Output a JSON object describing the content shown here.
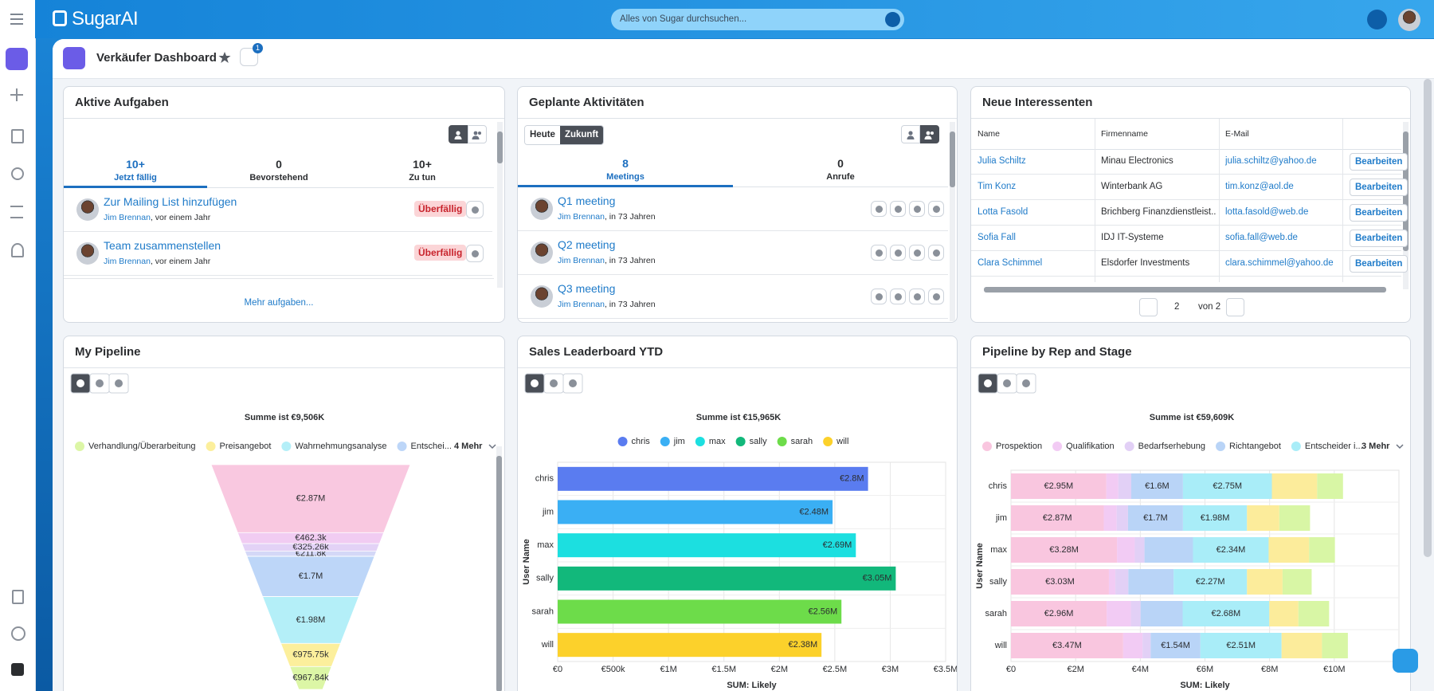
{
  "header": {
    "logo": "SugarAI",
    "search_placeholder": "Alles von Sugar durchsuchen..."
  },
  "dashboard": {
    "title": "Verkäufer Dashboard",
    "filter_count": "1"
  },
  "tasks": {
    "title": "Aktive Aufgaben",
    "tabs": [
      {
        "count": "10+",
        "label": "Jetzt fällig"
      },
      {
        "count": "0",
        "label": "Bevorstehend"
      },
      {
        "count": "10+",
        "label": "Zu tun"
      }
    ],
    "items": [
      {
        "name": "Zur Mailing List hinzufügen",
        "user": "Jim Brennan",
        "time": ", vor einem Jahr",
        "status": "Überfällig"
      },
      {
        "name": "Team zusammenstellen",
        "user": "Jim Brennan",
        "time": ", vor einem Jahr",
        "status": "Überfällig"
      }
    ],
    "more": "Mehr aufgaben..."
  },
  "activities": {
    "title": "Geplante Aktivitäten",
    "filters": [
      "Heute",
      "Zukunft"
    ],
    "tabs": [
      {
        "count": "8",
        "label": "Meetings"
      },
      {
        "count": "0",
        "label": "Anrufe"
      }
    ],
    "items": [
      {
        "name": "Q1 meeting",
        "user": "Jim Brennan",
        "time": ", in 73 Jahren"
      },
      {
        "name": "Q2 meeting",
        "user": "Jim Brennan",
        "time": ", in 73 Jahren"
      },
      {
        "name": "Q3 meeting",
        "user": "Jim Brennan",
        "time": ", in 73 Jahren"
      }
    ]
  },
  "leads": {
    "title": "Neue Interessenten",
    "columns": [
      "Name",
      "Firmenname",
      "E-Mail"
    ],
    "rows": [
      [
        "Julia Schiltz",
        "Minau Electronics",
        "julia.schiltz@yahoo.de"
      ],
      [
        "Tim Konz",
        "Winterbank AG",
        "tim.konz@aol.de"
      ],
      [
        "Lotta Fasold",
        "Brichberg Finanzdienstleist...",
        "lotta.fasold@web.de"
      ],
      [
        "Sofia Fall",
        "IDJ IT-Systeme",
        "sofia.fall@web.de"
      ],
      [
        "Clara Schimmel",
        "Elsdorfer Investments",
        "clara.schimmel@yahoo.de"
      ]
    ],
    "action": "Bearbeiten",
    "page": "2",
    "page_total": "von 2"
  },
  "chart_data": [
    {
      "type": "funnel",
      "title": "My Pipeline",
      "subtitle": "Summe ist €9,506K",
      "categories": [
        "Verhandlung/Überarbeitung",
        "Preisangebot",
        "Wahrnehmungsanalyse",
        "Entschei...",
        null,
        null,
        null,
        null
      ],
      "values": [
        967840,
        975750,
        1980000,
        1700000,
        211800,
        325260,
        462300,
        2870000
      ],
      "value_labels": [
        "€967.84k",
        "€975.75k",
        "€1.98M",
        "€1.7M",
        "€211.8k",
        "€325.26k",
        "€462.3k",
        "€2.87M"
      ],
      "colors": [
        "#dcf6a6",
        "#fcef9c",
        "#b4eff8",
        "#bdd6f8",
        "#d4d8f7",
        "#e3d2f6",
        "#f1ccf2",
        "#f9c8e0"
      ],
      "legend_more": "4 Mehr"
    },
    {
      "type": "bar",
      "title": "Sales Leaderboard YTD",
      "subtitle": "Summe ist €15,965K",
      "x_label": "SUM: Likely",
      "y_label": "User Name",
      "categories": [
        "chris",
        "jim",
        "max",
        "sally",
        "sarah",
        "will"
      ],
      "values": [
        2800000,
        2480000,
        2690000,
        3050000,
        2560000,
        2380000
      ],
      "value_labels": [
        "€2.8M",
        "€2.48M",
        "€2.69M",
        "€3.05M",
        "€2.56M",
        "€2.38M"
      ],
      "colors": [
        "#5a7cf0",
        "#3aaff4",
        "#1cdfe0",
        "#12b87b",
        "#6ddc4a",
        "#fcd12b"
      ],
      "xlim": [
        0,
        3500000
      ],
      "xticks": [
        {
          "value": 0,
          "label": "€0"
        },
        {
          "value": 500000,
          "label": "€500k"
        },
        {
          "value": 1000000,
          "label": "€1M"
        },
        {
          "value": 1500000,
          "label": "€1.5M"
        },
        {
          "value": 2000000,
          "label": "€2M"
        },
        {
          "value": 2500000,
          "label": "€2.5M"
        },
        {
          "value": 3000000,
          "label": "€3M"
        },
        {
          "value": 3500000,
          "label": "€3.5M"
        }
      ],
      "grid": true
    },
    {
      "type": "bar",
      "title": "Pipeline by Rep and Stage",
      "subtitle": "Summe ist €59,609K",
      "x_label": "SUM: Likely",
      "y_label": "User Name",
      "stacked": true,
      "categories": [
        "chris",
        "jim",
        "max",
        "sally",
        "sarah",
        "will"
      ],
      "series": [
        {
          "name": "Prospektion",
          "color": "#f9c6df",
          "values": [
            2950000,
            2870000,
            3280000,
            3030000,
            2960000,
            3470000
          ],
          "value_labels": [
            "€2.95M",
            "€2.87M",
            "€3.28M",
            "€3.03M",
            "€2.96M",
            "€3.47M"
          ]
        },
        {
          "name": "Qualifikation",
          "color": "#f2cbf4",
          "values": [
            370000,
            400000,
            550000,
            200000,
            750000,
            600000
          ]
        },
        {
          "name": "Bedarfserhebung",
          "color": "#e2d0f6",
          "values": [
            400000,
            350000,
            300000,
            400000,
            300000,
            250000
          ]
        },
        {
          "name": "Richtangebot",
          "color": "#b9d4f7",
          "values": [
            1600000,
            1700000,
            1500000,
            1400000,
            1300000,
            1540000
          ],
          "value_labels": [
            "€1.6M",
            "€1.7M",
            null,
            null,
            null,
            "€1.54M"
          ]
        },
        {
          "name": "Entscheider i...",
          "color": "#a9edf8",
          "values": [
            2750000,
            1980000,
            2340000,
            2270000,
            2680000,
            2510000
          ],
          "value_labels": [
            "€2.75M",
            "€1.98M",
            "€2.34M",
            "€2.27M",
            "€2.68M",
            "€2.51M"
          ]
        },
        {
          "color": "#fcec9b",
          "values": [
            1400000,
            1000000,
            1250000,
            1100000,
            900000,
            1250000
          ]
        },
        {
          "color": "#d8f6a5",
          "values": [
            800000,
            950000,
            800000,
            900000,
            950000,
            800000
          ]
        }
      ],
      "xlim": [
        0,
        12000000
      ],
      "xticks": [
        {
          "value": 0,
          "label": "€0"
        },
        {
          "value": 2000000,
          "label": "€2M"
        },
        {
          "value": 4000000,
          "label": "€4M"
        },
        {
          "value": 6000000,
          "label": "€6M"
        },
        {
          "value": 8000000,
          "label": "€8M"
        },
        {
          "value": 10000000,
          "label": "€10M"
        }
      ],
      "grid": true,
      "legend_more": "3 Mehr"
    }
  ]
}
